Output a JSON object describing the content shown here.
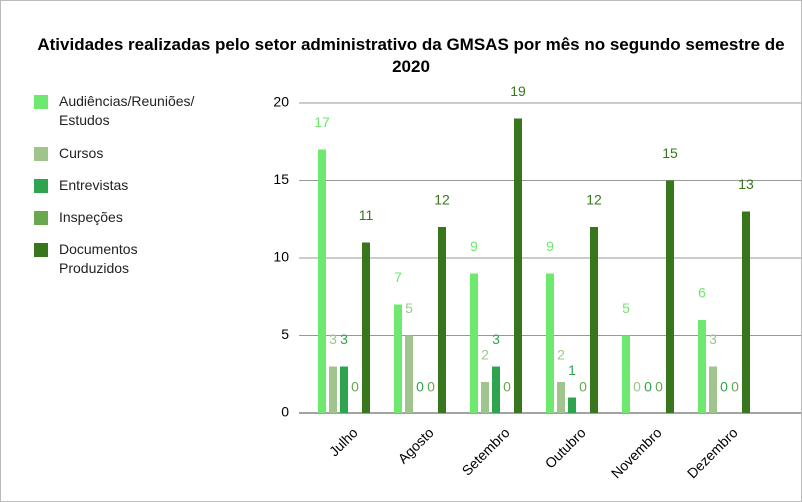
{
  "chart_data": {
    "type": "bar",
    "title": "Atividades realizadas pelo setor administrativo da GMSAS por mês no segundo semestre de 2020",
    "categories": [
      "Julho",
      "Agosto",
      "Setembro",
      "Outubro",
      "Novembro",
      "Dezembro"
    ],
    "series": [
      {
        "name": "Audiências/Reuniões/Estudos",
        "color": "#6ee86e",
        "values": [
          17,
          7,
          9,
          9,
          5,
          6
        ]
      },
      {
        "name": "Cursos",
        "color": "#9fc58c",
        "values": [
          3,
          5,
          2,
          2,
          0,
          3
        ]
      },
      {
        "name": "Entrevistas",
        "color": "#2ea44f",
        "values": [
          3,
          0,
          3,
          1,
          0,
          0
        ]
      },
      {
        "name": "Inspeções",
        "color": "#6aa84f",
        "values": [
          0,
          0,
          0,
          0,
          0,
          0
        ]
      },
      {
        "name": "Documentos Produzidos",
        "color": "#38761d",
        "values": [
          11,
          12,
          19,
          12,
          15,
          13
        ]
      }
    ],
    "ylim": [
      0,
      20
    ],
    "yticks": [
      0,
      5,
      10,
      15,
      20
    ],
    "grid": true,
    "legend": "left"
  }
}
